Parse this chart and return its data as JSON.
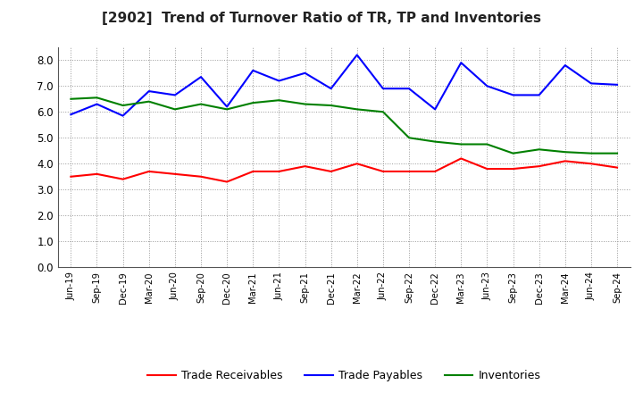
{
  "title": "[2902]  Trend of Turnover Ratio of TR, TP and Inventories",
  "labels": [
    "Jun-19",
    "Sep-19",
    "Dec-19",
    "Mar-20",
    "Jun-20",
    "Sep-20",
    "Dec-20",
    "Mar-21",
    "Jun-21",
    "Sep-21",
    "Dec-21",
    "Mar-22",
    "Jun-22",
    "Sep-22",
    "Dec-22",
    "Mar-23",
    "Jun-23",
    "Sep-23",
    "Dec-23",
    "Mar-24",
    "Jun-24",
    "Sep-24"
  ],
  "trade_receivables": [
    3.5,
    3.6,
    3.4,
    3.7,
    3.6,
    3.5,
    3.3,
    3.7,
    3.7,
    3.9,
    3.7,
    4.0,
    3.7,
    3.7,
    3.7,
    4.2,
    3.8,
    3.8,
    3.9,
    4.1,
    4.0,
    3.85
  ],
  "trade_payables": [
    5.9,
    6.3,
    5.85,
    6.8,
    6.65,
    7.35,
    6.2,
    7.6,
    7.2,
    7.5,
    6.9,
    8.2,
    6.9,
    6.9,
    6.1,
    7.9,
    7.0,
    6.65,
    6.65,
    7.8,
    7.1,
    7.05
  ],
  "inventories": [
    6.5,
    6.55,
    6.25,
    6.4,
    6.1,
    6.3,
    6.1,
    6.35,
    6.45,
    6.3,
    6.25,
    6.1,
    6.0,
    5.0,
    4.85,
    4.75,
    4.75,
    4.4,
    4.55,
    4.45,
    4.4,
    4.4
  ],
  "tr_color": "#ff0000",
  "tp_color": "#0000ff",
  "inv_color": "#008000",
  "ylim": [
    0.0,
    8.5
  ],
  "yticks": [
    0.0,
    1.0,
    2.0,
    3.0,
    4.0,
    5.0,
    6.0,
    7.0,
    8.0
  ],
  "bg_color": "#ffffff",
  "grid_color": "#999999",
  "legend_labels": [
    "Trade Receivables",
    "Trade Payables",
    "Inventories"
  ]
}
